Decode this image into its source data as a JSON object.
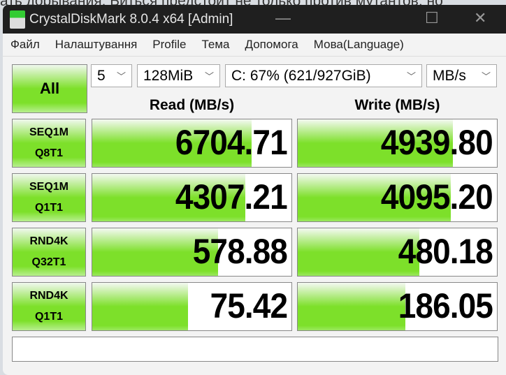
{
  "background_text": "ать дорывания. Биться предстоит не только против мутантов, но",
  "window": {
    "title": "CrystalDiskMark 8.0.4 x64 [Admin]"
  },
  "menu": [
    "Файл",
    "Налаштування",
    "Profile",
    "Тема",
    "Допомога",
    "Мова(Language)"
  ],
  "controls": {
    "all_label": "All",
    "count": "5",
    "size": "128MiB",
    "drive": "C: 67% (621/927GiB)",
    "unit": "MB/s"
  },
  "headers": {
    "read": "Read (MB/s)",
    "write": "Write (MB/s)"
  },
  "accent_color": "#7de02a",
  "rows": [
    {
      "line1": "SEQ1M",
      "line2": "Q8T1",
      "read": "6704.71",
      "write": "4939.80",
      "read_fill": 0.8,
      "write_fill": 0.78
    },
    {
      "line1": "SEQ1M",
      "line2": "Q1T1",
      "read": "4307.21",
      "write": "4095.20",
      "read_fill": 0.77,
      "write_fill": 0.77
    },
    {
      "line1": "RND4K",
      "line2": "Q32T1",
      "read": "578.88",
      "write": "480.18",
      "read_fill": 0.63,
      "write_fill": 0.61
    },
    {
      "line1": "RND4K",
      "line2": "Q1T1",
      "read": "75.42",
      "write": "186.05",
      "read_fill": 0.48,
      "write_fill": 0.54
    }
  ],
  "status": ""
}
